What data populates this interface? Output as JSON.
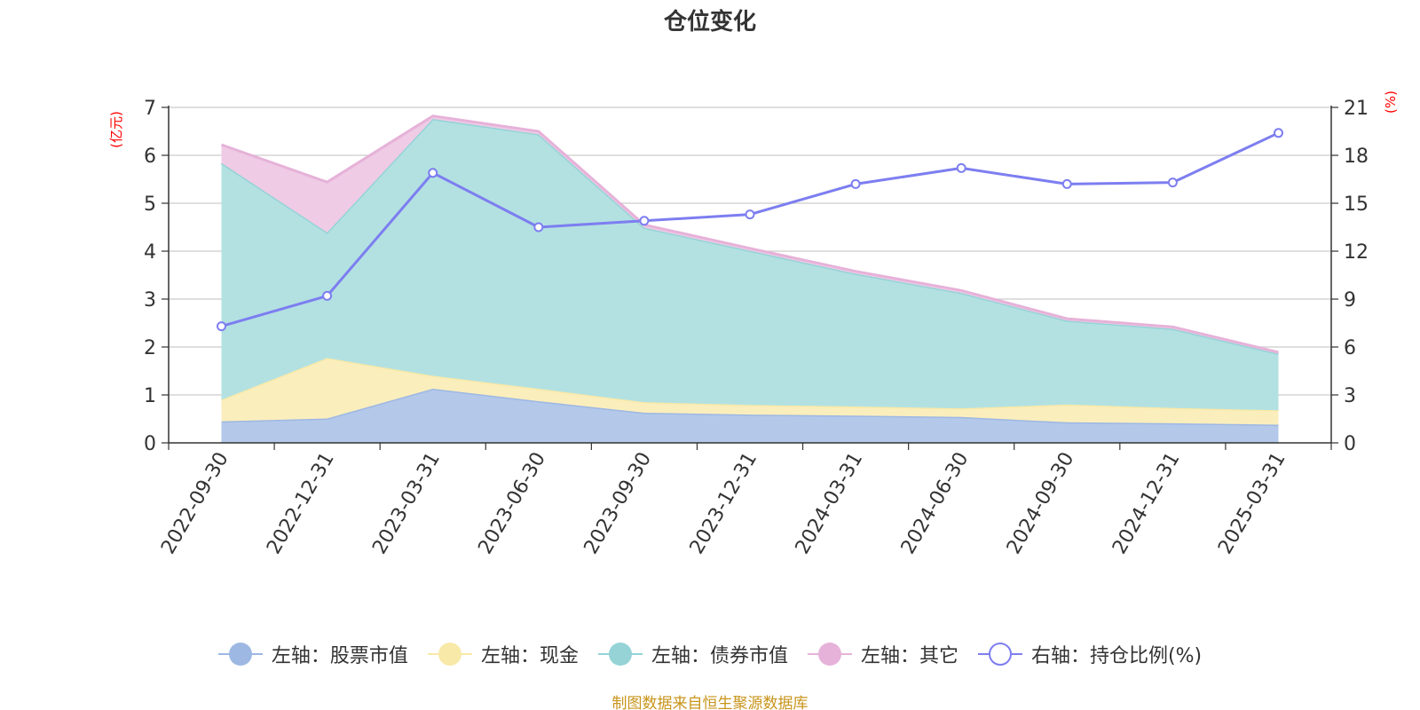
{
  "chart_data": {
    "type": "area",
    "title": "仓位变化",
    "categories": [
      "2022-09-30",
      "2022-12-31",
      "2023-03-31",
      "2023-06-30",
      "2023-09-30",
      "2023-12-31",
      "2024-03-31",
      "2024-06-30",
      "2024-09-30",
      "2024-12-31",
      "2025-03-31"
    ],
    "left_axis": {
      "label": "(亿元)",
      "min": 0,
      "max": 7,
      "ticks": [
        0,
        1,
        2,
        3,
        4,
        5,
        6,
        7
      ]
    },
    "right_axis": {
      "label": "(%)",
      "min": 0,
      "max": 21,
      "ticks": [
        0,
        3,
        6,
        9,
        12,
        15,
        18,
        21
      ]
    },
    "stacked_series": [
      {
        "name": "左轴：股票市值",
        "color": "#9db8e3",
        "fill": "#b4c8ea",
        "values": [
          0.45,
          0.51,
          1.13,
          0.87,
          0.63,
          0.59,
          0.57,
          0.54,
          0.43,
          0.41,
          0.38
        ]
      },
      {
        "name": "左轴：现金",
        "color": "#f8e9a8",
        "fill": "#fbeebd",
        "values": [
          0.45,
          1.26,
          0.27,
          0.26,
          0.22,
          0.2,
          0.19,
          0.18,
          0.37,
          0.32,
          0.3
        ]
      },
      {
        "name": "左轴：债券市值",
        "color": "#95d3d7",
        "fill": "#b3e1e2",
        "values": [
          4.94,
          2.62,
          5.36,
          5.31,
          3.64,
          3.22,
          2.77,
          2.41,
          1.75,
          1.65,
          1.18
        ]
      },
      {
        "name": "左轴：其它",
        "color": "#e6b2d9",
        "fill": "#efcbe5",
        "values": [
          0.38,
          1.05,
          0.06,
          0.06,
          0.06,
          0.05,
          0.05,
          0.05,
          0.04,
          0.04,
          0.03
        ]
      }
    ],
    "line_series": {
      "name": "右轴：持仓比例(%)",
      "color": "#7d7ef0",
      "values": [
        7.3,
        9.2,
        16.9,
        13.5,
        13.9,
        14.3,
        16.2,
        17.2,
        16.2,
        16.3,
        19.4
      ]
    },
    "legend_position": "bottom",
    "grid": true
  },
  "footer": {
    "source": "制图数据来自恒生聚源数据库"
  }
}
